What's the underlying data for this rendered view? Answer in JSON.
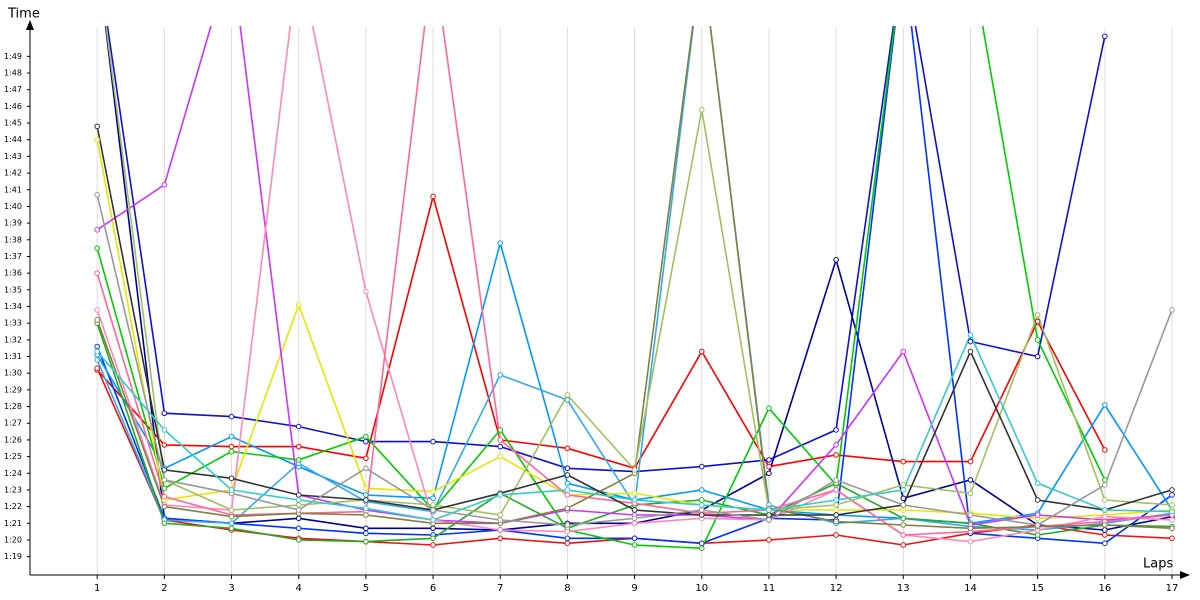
{
  "chart_data": {
    "type": "line",
    "x_label": "Laps",
    "y_label": "Time",
    "x": [
      1,
      2,
      3,
      4,
      5,
      6,
      7,
      8,
      9,
      10,
      11,
      12,
      13,
      14,
      15,
      16,
      17
    ],
    "xlim": [
      0,
      17
    ],
    "xticks": [
      1,
      2,
      3,
      4,
      5,
      6,
      7,
      8,
      9,
      10,
      11,
      12,
      13,
      14,
      15,
      16,
      17
    ],
    "ylim": [
      77.9,
      110.7
    ],
    "yticks": [
      {
        "value": 79,
        "label": "1:19"
      },
      {
        "value": 80,
        "label": "1:20"
      },
      {
        "value": 81,
        "label": "1:21"
      },
      {
        "value": 82,
        "label": "1:22"
      },
      {
        "value": 83,
        "label": "1:23"
      },
      {
        "value": 84,
        "label": "1:24"
      },
      {
        "value": 85,
        "label": "1:25"
      },
      {
        "value": 86,
        "label": "1:26"
      },
      {
        "value": 87,
        "label": "1:27"
      },
      {
        "value": 88,
        "label": "1:28"
      },
      {
        "value": 89,
        "label": "1:29"
      },
      {
        "value": 90,
        "label": "1:30"
      },
      {
        "value": 91,
        "label": "1:31"
      },
      {
        "value": 92,
        "label": "1:32"
      },
      {
        "value": 93,
        "label": "1:33"
      },
      {
        "value": 94,
        "label": "1:34"
      },
      {
        "value": 95,
        "label": "1:35"
      },
      {
        "value": 96,
        "label": "1:36"
      },
      {
        "value": 97,
        "label": "1:37"
      },
      {
        "value": 98,
        "label": "1:38"
      },
      {
        "value": 99,
        "label": "1:39"
      },
      {
        "value": 100,
        "label": "1:40"
      },
      {
        "value": 101,
        "label": "1:41"
      },
      {
        "value": 102,
        "label": "1:42"
      },
      {
        "value": 103,
        "label": "1:43"
      },
      {
        "value": 104,
        "label": "1:44"
      },
      {
        "value": 105,
        "label": "1:45"
      },
      {
        "value": 106,
        "label": "1:46"
      },
      {
        "value": 107,
        "label": "1:47"
      },
      {
        "value": 108,
        "label": "1:48"
      },
      {
        "value": 109,
        "label": "1:49"
      }
    ],
    "grid": true,
    "series": [
      {
        "color": "#ff0000",
        "values": [
          90.2,
          85.7,
          85.6,
          85.6,
          84.9,
          100.6,
          86.0,
          85.5,
          84.3,
          91.3,
          84.4,
          85.1,
          84.7,
          84.7,
          93.1,
          85.4,
          null
        ]
      },
      {
        "color": "#ee1111",
        "values": [
          90.3,
          81.2,
          80.6,
          80.1,
          79.9,
          79.7,
          80.1,
          79.8,
          80.1,
          79.8,
          80.0,
          80.3,
          79.7,
          80.4,
          80.9,
          80.3,
          80.1
        ]
      },
      {
        "color": "#1010d0",
        "values": [
          115,
          87.6,
          87.4,
          86.8,
          85.9,
          85.9,
          85.6,
          84.3,
          84.1,
          84.4,
          84.8,
          86.6,
          115,
          91.9,
          91.0,
          110.2,
          null
        ]
      },
      {
        "color": "#000099",
        "values": [
          115,
          81.3,
          81.0,
          81.3,
          80.7,
          80.7,
          80.6,
          81.0,
          81.0,
          81.8,
          84.0,
          96.8,
          82.5,
          83.6,
          80.9,
          80.6,
          81.4
        ]
      },
      {
        "color": "#0033ff",
        "values": [
          91.6,
          81.3,
          81.0,
          80.7,
          80.4,
          80.3,
          80.6,
          80.1,
          80.1,
          79.8,
          81.3,
          81.2,
          115,
          80.4,
          80.1,
          79.8,
          82.7
        ]
      },
      {
        "color": "#0099ff",
        "values": [
          91.1,
          84.3,
          86.2,
          84.4,
          82.7,
          82.5,
          97.8,
          83.4,
          82.4,
          83.0,
          81.8,
          81.5,
          81.3,
          81.0,
          81.6,
          88.1,
          81.8
        ]
      },
      {
        "color": "#33aaee",
        "values": [
          90.8,
          81.2,
          81.0,
          84.6,
          82.3,
          81.7,
          89.9,
          88.4,
          82.1,
          115,
          82.1,
          81.0,
          81.3,
          80.8,
          80.6,
          81.0,
          81.6
        ]
      },
      {
        "color": "#00cc00",
        "values": [
          97.5,
          83.1,
          85.3,
          84.8,
          86.2,
          81.8,
          86.6,
          80.6,
          79.7,
          79.5,
          87.9,
          83.3,
          115,
          115,
          92.0,
          83.6,
          null
        ]
      },
      {
        "color": "#22aa22",
        "values": [
          93.0,
          81.0,
          80.7,
          80.0,
          79.9,
          80.1,
          82.8,
          80.7,
          82.1,
          82.4,
          81.5,
          83.4,
          81.3,
          81.0,
          80.3,
          80.9,
          80.8
        ]
      },
      {
        "color": "#e6e600",
        "values": [
          104.0,
          82.4,
          83.0,
          94.1,
          83.1,
          82.9,
          85.0,
          82.7,
          82.8,
          82.1,
          81.8,
          81.8,
          81.8,
          81.6,
          81.3,
          81.5,
          81.8
        ]
      },
      {
        "color": "#cc33ff",
        "values": [
          98.6,
          101.3,
          115,
          82.7,
          81.8,
          81.2,
          81.0,
          81.8,
          81.5,
          81.5,
          81.2,
          85.7,
          91.3,
          80.9,
          81.5,
          81.2,
          81.5
        ]
      },
      {
        "color": "#ff88bb",
        "values": [
          93.8,
          82.1,
          81.8,
          115,
          94.9,
          81.2,
          80.6,
          80.5,
          81.0,
          81.3,
          81.2,
          83.0,
          80.3,
          79.9,
          80.6,
          81.4,
          81.2
        ]
      },
      {
        "color": "#ff6699",
        "values": [
          96.0,
          82.6,
          81.5,
          81.6,
          81.7,
          115,
          86.0,
          82.7,
          82.2,
          81.6,
          81.8,
          83.0,
          80.3,
          80.5,
          80.8,
          81.1,
          81.5
        ]
      },
      {
        "color": "#808040",
        "values": [
          93.2,
          82.0,
          81.4,
          81.6,
          81.5,
          81.0,
          81.0,
          81.9,
          84.0,
          115,
          81.9,
          81.1,
          80.9,
          80.7,
          80.8,
          80.9,
          80.7
        ]
      },
      {
        "color": "#a0c060",
        "values": [
          115,
          83.6,
          81.8,
          82.1,
          82.4,
          82.1,
          81.5,
          88.7,
          84.2,
          105.8,
          81.8,
          82.1,
          83.3,
          82.8,
          93.5,
          82.4,
          82.1
        ]
      },
      {
        "color": "#333333",
        "values": [
          104.8,
          84.2,
          83.7,
          82.7,
          82.4,
          81.8,
          82.8,
          83.9,
          81.8,
          81.5,
          81.5,
          81.5,
          82.1,
          91.3,
          82.4,
          81.8,
          83.0
        ]
      },
      {
        "color": "#999999",
        "values": [
          100.7,
          83.6,
          82.8,
          81.8,
          84.3,
          81.8,
          81.2,
          80.9,
          81.3,
          81.8,
          81.2,
          83.6,
          82.1,
          81.5,
          80.9,
          83.3,
          93.8
        ]
      },
      {
        "color": "#33cccc",
        "values": [
          91.3,
          86.6,
          83.0,
          82.4,
          81.9,
          81.2,
          82.7,
          83.0,
          82.4,
          82.1,
          81.8,
          82.4,
          83.0,
          92.3,
          83.4,
          81.8,
          81.7
        ]
      }
    ]
  }
}
